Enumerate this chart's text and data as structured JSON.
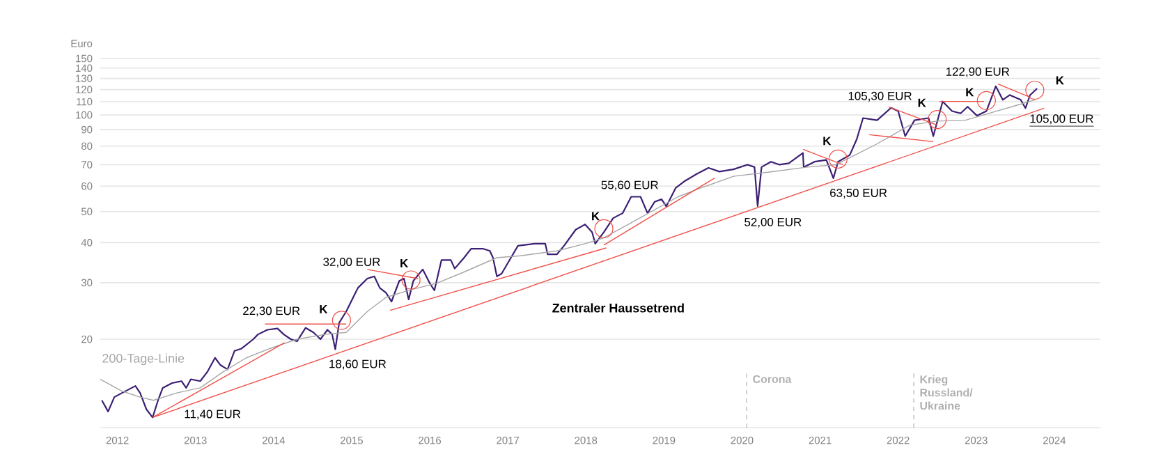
{
  "chart_data": {
    "type": "line",
    "ylabel": "Euro",
    "log": "y",
    "grid": "y",
    "xlim": [
      2011.78,
      2024.59
    ],
    "xticks": [
      2012,
      2013,
      2014,
      2015,
      2016,
      2017,
      2018,
      2019,
      2020,
      2021,
      2022,
      2023,
      2024
    ],
    "ylim": [
      10.6,
      150
    ],
    "yticks": [
      20,
      30,
      40,
      50,
      60,
      70,
      80,
      90,
      100,
      110,
      120,
      130,
      140,
      150
    ],
    "series": [
      {
        "color": "#3b1f73",
        "x": [
          2011.8,
          2011.88,
          2011.96,
          2012.06,
          2012.23,
          2012.29,
          2012.37,
          2012.45,
          2012.52,
          2012.58,
          2012.7,
          2012.82,
          2012.88,
          2012.94,
          2013.06,
          2013.15,
          2013.25,
          2013.32,
          2013.41,
          2013.5,
          2013.59,
          2013.74,
          2013.8,
          2013.92,
          2014.05,
          2014.13,
          2014.22,
          2014.3,
          2014.41,
          2014.51,
          2014.6,
          2014.69,
          2014.75,
          2014.79,
          2014.84,
          2014.93,
          2015.08,
          2015.2,
          2015.29,
          2015.36,
          2015.44,
          2015.51,
          2015.61,
          2015.67,
          2015.73,
          2015.79,
          2015.91,
          2016.0,
          2016.06,
          2016.15,
          2016.27,
          2016.32,
          2016.44,
          2016.53,
          2016.68,
          2016.77,
          2016.81,
          2016.86,
          2016.92,
          2017.04,
          2017.13,
          2017.34,
          2017.48,
          2017.51,
          2017.63,
          2017.72,
          2017.87,
          2017.99,
          2018.08,
          2018.12,
          2018.23,
          2018.35,
          2018.47,
          2018.58,
          2018.7,
          2018.79,
          2018.88,
          2018.97,
          2019.03,
          2019.15,
          2019.27,
          2019.42,
          2019.57,
          2019.71,
          2019.89,
          2020.07,
          2020.16,
          2020.2,
          2020.25,
          2020.37,
          2020.48,
          2020.6,
          2020.78,
          2020.79,
          2020.93,
          2021.08,
          2021.17,
          2021.23,
          2021.38,
          2021.47,
          2021.55,
          2021.73,
          2021.91,
          2022.0,
          2022.09,
          2022.21,
          2022.39,
          2022.45,
          2022.57,
          2022.69,
          2022.8,
          2022.89,
          2023.01,
          2023.13,
          2023.25,
          2023.34,
          2023.43,
          2023.57,
          2023.63,
          2023.69,
          2023.78
        ],
        "values": [
          12.9,
          11.9,
          13.2,
          13.6,
          14.3,
          13.6,
          12.1,
          11.4,
          12.9,
          14.1,
          14.6,
          14.8,
          14.1,
          15.0,
          14.8,
          15.8,
          17.5,
          16.6,
          16.1,
          18.4,
          18.7,
          20.0,
          20.7,
          21.4,
          21.6,
          20.7,
          20.0,
          19.7,
          21.7,
          21.0,
          20.0,
          21.4,
          20.7,
          18.6,
          22.5,
          24.4,
          28.9,
          30.9,
          31.4,
          28.9,
          27.9,
          26.2,
          30.4,
          30.9,
          26.6,
          30.4,
          33.0,
          29.9,
          28.4,
          35.3,
          35.3,
          33.2,
          35.9,
          38.3,
          38.3,
          37.7,
          35.9,
          31.4,
          32.0,
          35.9,
          39.1,
          39.7,
          39.7,
          36.8,
          36.8,
          39.1,
          43.9,
          45.6,
          43.1,
          39.7,
          43.1,
          47.7,
          49.4,
          55.6,
          55.6,
          49.4,
          53.6,
          54.6,
          51.9,
          59.2,
          62.3,
          65.5,
          68.4,
          66.6,
          67.7,
          70.0,
          68.8,
          52.0,
          68.8,
          71.5,
          70.0,
          70.7,
          76.1,
          68.8,
          71.5,
          72.4,
          63.5,
          71.5,
          75.0,
          84.1,
          97.8,
          96.3,
          105.3,
          102.8,
          85.9,
          96.3,
          97.8,
          85.9,
          110.2,
          102.8,
          101.2,
          106.1,
          99.5,
          102.8,
          122.9,
          111.5,
          115.4,
          111.5,
          105.0,
          115.4,
          121.0
        ]
      },
      {
        "name": "200-Tage-Linie",
        "color": "#a6a6a6",
        "x": [
          2011.78,
          2012.05,
          2012.29,
          2012.46,
          2012.76,
          2013.06,
          2013.35,
          2013.65,
          2013.95,
          2014.3,
          2014.66,
          2014.93,
          2015.2,
          2015.44,
          2015.73,
          2016.09,
          2016.44,
          2016.86,
          2017.16,
          2017.63,
          2017.99,
          2018.23,
          2018.58,
          2019.18,
          2019.47,
          2019.89,
          2020.37,
          2020.84,
          2021.2,
          2021.43,
          2021.73,
          2022.15,
          2022.5,
          2022.86,
          2023.22,
          2023.57,
          2023.75
        ],
        "values": [
          15.0,
          13.8,
          13.2,
          12.9,
          13.6,
          14.1,
          15.8,
          17.5,
          18.7,
          20.0,
          20.7,
          21.0,
          24.4,
          27.0,
          28.4,
          29.9,
          32.4,
          35.9,
          36.4,
          37.7,
          39.7,
          41.4,
          46.1,
          55.6,
          59.2,
          64.4,
          66.5,
          68.8,
          70.0,
          74.6,
          81.3,
          93.0,
          95.7,
          96.3,
          102.1,
          108.1,
          111.5
        ]
      },
      {
        "name": "Zentraler Haussetrend",
        "color": "#f0504a",
        "x": [
          2012.45,
          2023.87
        ],
        "values": [
          11.4,
          105.0
        ]
      },
      {
        "color": "#f0504a",
        "x": [
          2012.45,
          2014.14
        ],
        "values": [
          11.4,
          19.5
        ]
      },
      {
        "color": "#f0504a",
        "x": [
          2013.89,
          2014.93
        ],
        "values": [
          22.3,
          22.3
        ]
      },
      {
        "color": "#f0504a",
        "x": [
          2015.2,
          2015.85
        ],
        "values": [
          33.0,
          30.9
        ]
      },
      {
        "color": "#f0504a",
        "x": [
          2015.49,
          2018.26
        ],
        "values": [
          24.6,
          38.5
        ]
      },
      {
        "color": "#f0504a",
        "x": [
          2018.23,
          2019.65
        ],
        "values": [
          39.3,
          63.6
        ]
      },
      {
        "color": "#f0504a",
        "x": [
          2020.78,
          2021.29
        ],
        "values": [
          78.2,
          70.0
        ]
      },
      {
        "color": "#f0504a",
        "x": [
          2021.88,
          2022.5
        ],
        "values": [
          105.9,
          93.0
        ]
      },
      {
        "color": "#f0504a",
        "x": [
          2021.63,
          2022.45
        ],
        "values": [
          86.8,
          82.6
        ]
      },
      {
        "color": "#f0504a",
        "x": [
          2022.53,
          2023.1
        ],
        "values": [
          110.2,
          110.2
        ]
      },
      {
        "color": "#f0504a",
        "x": [
          2023.28,
          2023.69
        ],
        "values": [
          124.9,
          113.6
        ]
      },
      {
        "type": "scatter",
        "marker": "circle",
        "color": "#f0504a",
        "x": [
          2014.87,
          2015.76,
          2018.23,
          2021.23,
          2022.5,
          2023.13,
          2023.75
        ],
        "values": [
          22.9,
          30.6,
          44.2,
          72.9,
          96.8,
          110.9,
          119.5
        ]
      }
    ],
    "ref_lines": [
      {
        "axis": "x",
        "value": 2020.06,
        "label": "Corona",
        "color": "#b0b0b0",
        "line_style": "dashed"
      },
      {
        "axis": "x",
        "value": 2022.2,
        "label": "Krieg Russland/ Ukraine",
        "color": "#b0b0b0",
        "line_style": "dashed"
      }
    ],
    "annotations": [
      {
        "text": "11,40 EUR",
        "x": 2012.45,
        "y": 11.4
      },
      {
        "text": "18,60 EUR",
        "x": 2014.79,
        "y": 18.6
      },
      {
        "text": "22,30 EUR",
        "x": 2014.4,
        "y": 22.3
      },
      {
        "text": "32,00 EUR",
        "x": 2015.5,
        "y": 32.0
      },
      {
        "text": "55,60 EUR",
        "x": 2018.58,
        "y": 55.6
      },
      {
        "text": "52,00 EUR",
        "x": 2020.2,
        "y": 52.0
      },
      {
        "text": "63,50 EUR",
        "x": 2021.17,
        "y": 63.5
      },
      {
        "text": "105,30 EUR",
        "x": 2021.91,
        "y": 105.3
      },
      {
        "text": "122,90 EUR",
        "x": 2023.25,
        "y": 122.9
      },
      {
        "text": "105,00 EUR",
        "x": 2023.63,
        "y": 105.0
      },
      {
        "text": "K",
        "x": 2014.87,
        "y": 22.9
      },
      {
        "text": "K",
        "x": 2015.76,
        "y": 30.6
      },
      {
        "text": "K",
        "x": 2018.23,
        "y": 44.2
      },
      {
        "text": "K",
        "x": 2021.23,
        "y": 72.9
      },
      {
        "text": "K",
        "x": 2022.5,
        "y": 96.8
      },
      {
        "text": "K",
        "x": 2023.13,
        "y": 110.9
      },
      {
        "text": "K",
        "x": 2023.75,
        "y": 119.5
      }
    ]
  }
}
